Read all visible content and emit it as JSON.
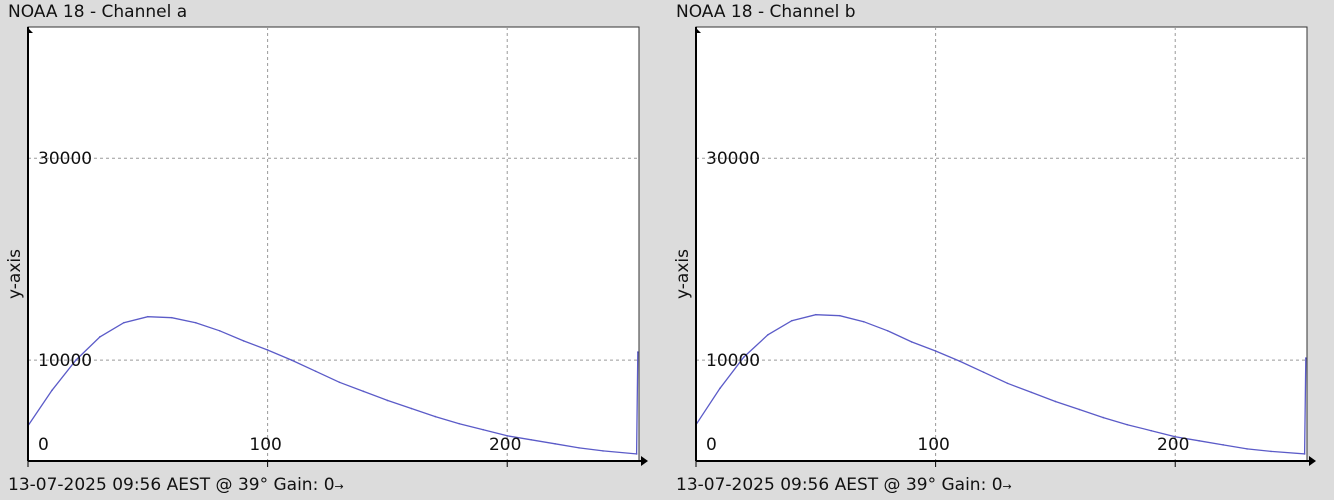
{
  "colors": {
    "background": "#dcdcdc",
    "plot_area": "#ffffff",
    "line": "#5b5bc8",
    "grid": "#9a9a9a",
    "axis": "#000000"
  },
  "panels": [
    {
      "title": "NOAA 18 - Channel a",
      "footer": "13-07-2025 09:56 AEST @ 39° Gain: 0",
      "footer_suffix": "→"
    },
    {
      "title": "NOAA 18 - Channel b",
      "footer": "13-07-2025 09:56 AEST @ 39° Gain: 0",
      "footer_suffix": "→"
    }
  ],
  "chart_data": [
    {
      "type": "line",
      "title": "NOAA 18 - Channel a",
      "xlabel": "",
      "ylabel": "y-axis",
      "xlim": [
        0,
        255
      ],
      "ylim": [
        0,
        43000
      ],
      "x_ticks": [
        0,
        100,
        200
      ],
      "y_ticks": [
        10000,
        30000
      ],
      "grid": true,
      "series": [
        {
          "x": [
            0,
            10,
            20,
            30,
            40,
            50,
            60,
            70,
            80,
            90,
            100,
            110,
            120,
            130,
            140,
            150,
            160,
            170,
            180,
            190,
            200,
            210,
            220,
            230,
            240,
            254,
            254.5
          ],
          "y": [
            3500,
            7000,
            10000,
            12300,
            13700,
            14300,
            14200,
            13700,
            12900,
            11900,
            11000,
            10000,
            8900,
            7800,
            6900,
            6000,
            5200,
            4400,
            3700,
            3100,
            2500,
            2100,
            1700,
            1300,
            1000,
            700,
            10800
          ]
        }
      ]
    },
    {
      "type": "line",
      "title": "NOAA 18 - Channel b",
      "xlabel": "",
      "ylabel": "y-axis",
      "xlim": [
        0,
        255
      ],
      "ylim": [
        0,
        43000
      ],
      "x_ticks": [
        0,
        100,
        200
      ],
      "y_ticks": [
        10000,
        30000
      ],
      "grid": true,
      "series": [
        {
          "x": [
            0,
            10,
            20,
            30,
            40,
            50,
            60,
            70,
            80,
            90,
            100,
            110,
            120,
            130,
            140,
            150,
            160,
            170,
            180,
            190,
            200,
            210,
            220,
            230,
            240,
            254,
            254.5
          ],
          "y": [
            3600,
            7200,
            10300,
            12500,
            13900,
            14500,
            14400,
            13800,
            12900,
            11800,
            10900,
            9900,
            8800,
            7700,
            6800,
            5900,
            5100,
            4300,
            3600,
            3000,
            2400,
            2000,
            1600,
            1200,
            950,
            700,
            10200
          ]
        }
      ]
    }
  ]
}
